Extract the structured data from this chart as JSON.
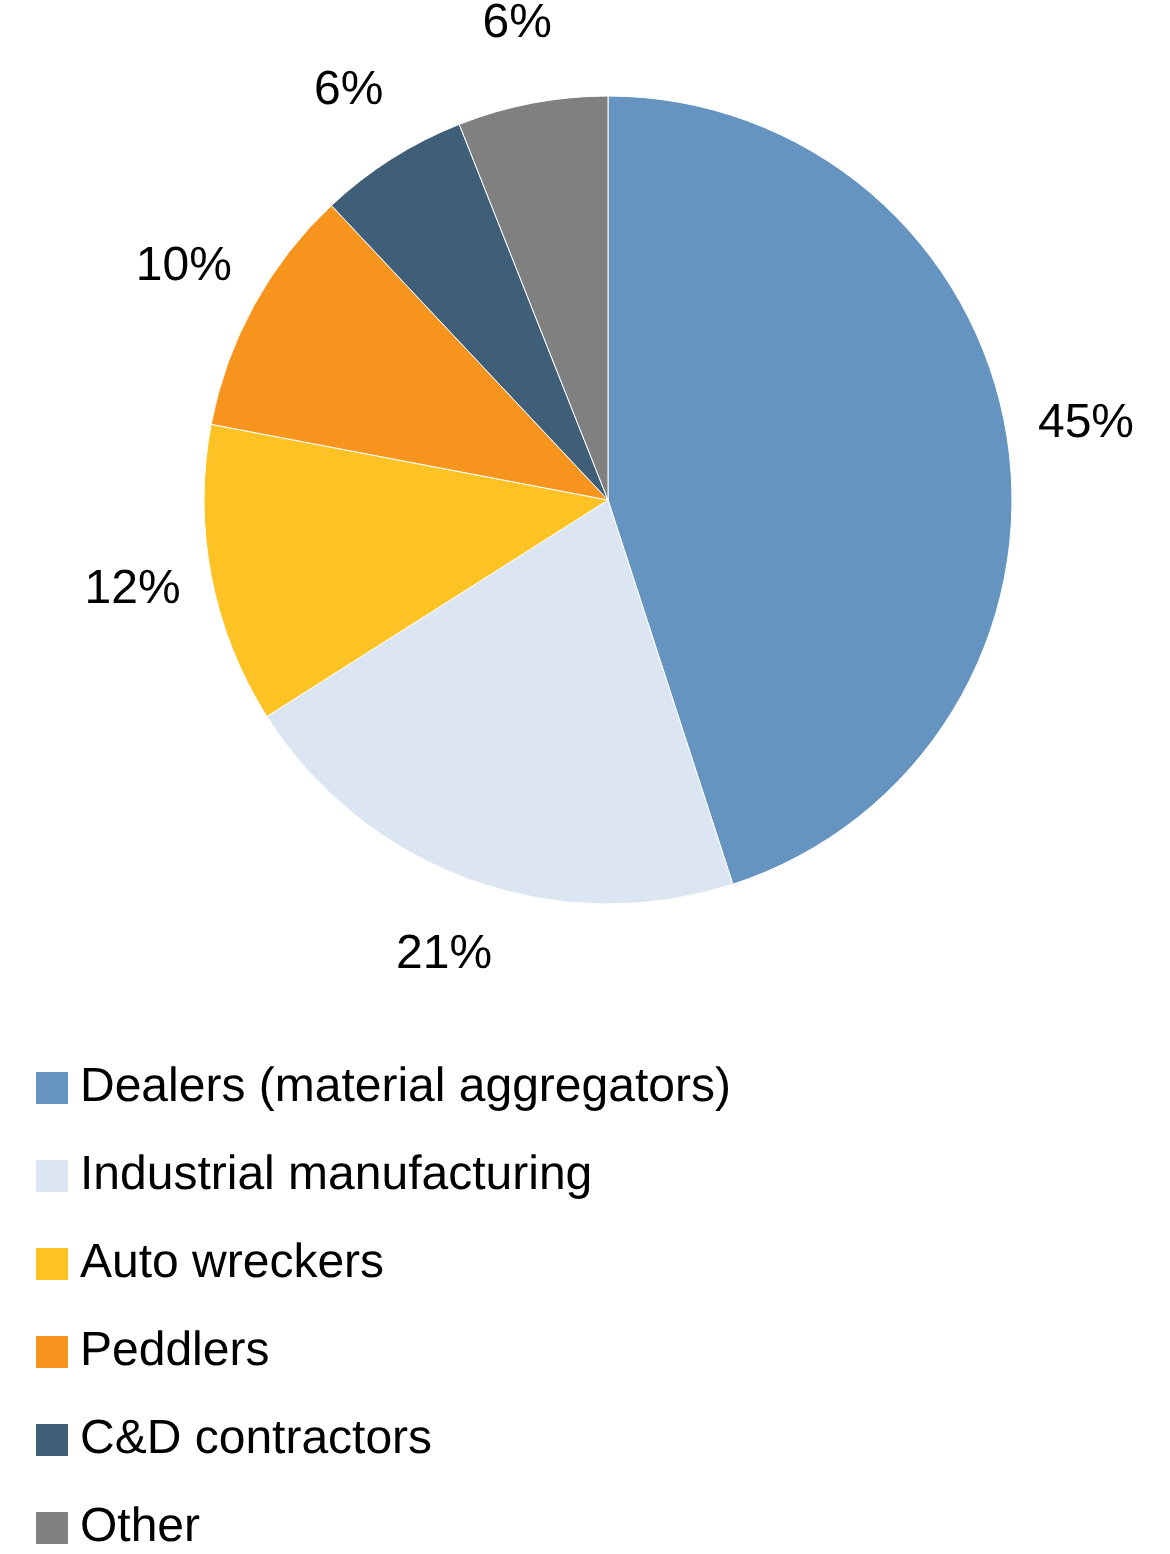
{
  "chart_data": {
    "type": "pie",
    "categories": [
      "Dealers (material aggregators)",
      "Industrial manufacturing",
      "Auto wreckers",
      "Peddlers",
      "C&D contractors",
      "Other"
    ],
    "values": [
      45,
      21,
      12,
      10,
      6,
      6
    ],
    "colors": [
      "#6694c1",
      "#dce6f2",
      "#fdc325",
      "#f7941d",
      "#3f5f78",
      "#808080"
    ],
    "value_labels": [
      "45%",
      "21%",
      "12%",
      "10%",
      "6%",
      "6%"
    ],
    "legend": "bottom"
  }
}
